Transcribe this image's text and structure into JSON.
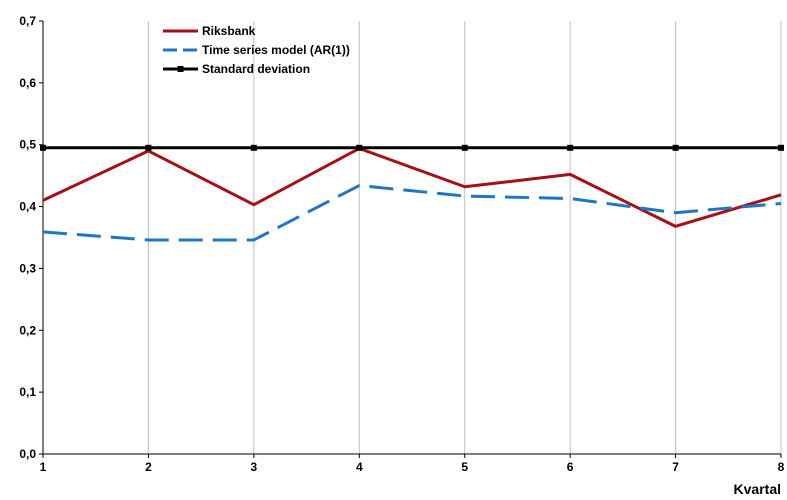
{
  "chart_data": {
    "type": "line",
    "title": "",
    "xlabel": "Kvartal",
    "ylabel": "",
    "x": [
      1,
      2,
      3,
      4,
      5,
      6,
      7,
      8
    ],
    "x_tick_labels": [
      "1",
      "2",
      "3",
      "4",
      "5",
      "6",
      "7",
      "8"
    ],
    "ylim": [
      0,
      0.7
    ],
    "y_ticks": [
      0,
      0.1,
      0.2,
      0.3,
      0.4,
      0.5,
      0.6,
      0.7
    ],
    "y_tick_labels": [
      "0,0",
      "0,1",
      "0,2",
      "0,3",
      "0,4",
      "0,5",
      "0,6",
      "0,7"
    ],
    "grid": "vertical",
    "legend_position": "top-left",
    "series": [
      {
        "name": "Riksbank",
        "color": "#a50f15",
        "style": "solid",
        "values": [
          0.41,
          0.49,
          0.403,
          0.494,
          0.432,
          0.452,
          0.368,
          0.419
        ]
      },
      {
        "name": "Time series model (AR(1))",
        "color": "#1f77c4",
        "style": "dashed",
        "values": [
          0.359,
          0.346,
          0.346,
          0.434,
          0.417,
          0.413,
          0.39,
          0.405
        ]
      },
      {
        "name": "Standard deviation",
        "color": "#000000",
        "style": "solid-markers",
        "values": [
          0.495,
          0.495,
          0.495,
          0.495,
          0.495,
          0.495,
          0.495,
          0.495
        ]
      }
    ]
  }
}
